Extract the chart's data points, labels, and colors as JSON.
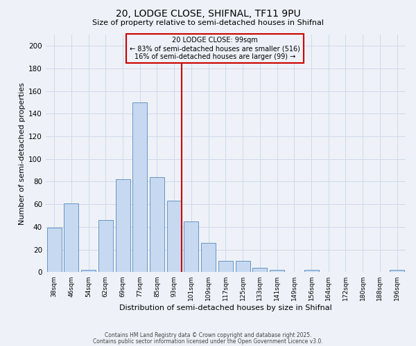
{
  "title1": "20, LODGE CLOSE, SHIFNAL, TF11 9PU",
  "title2": "Size of property relative to semi-detached houses in Shifnal",
  "xlabel": "Distribution of semi-detached houses by size in Shifnal",
  "ylabel": "Number of semi-detached properties",
  "categories": [
    "38sqm",
    "46sqm",
    "54sqm",
    "62sqm",
    "69sqm",
    "77sqm",
    "85sqm",
    "93sqm",
    "101sqm",
    "109sqm",
    "117sqm",
    "125sqm",
    "133sqm",
    "141sqm",
    "149sqm",
    "156sqm",
    "164sqm",
    "172sqm",
    "180sqm",
    "188sqm",
    "196sqm"
  ],
  "values": [
    39,
    61,
    2,
    46,
    82,
    150,
    84,
    63,
    45,
    26,
    10,
    10,
    4,
    2,
    0,
    2,
    0,
    0,
    0,
    0,
    2
  ],
  "bar_color": "#c6d9f0",
  "bar_edge_color": "#5588bb",
  "grid_color": "#d0d8e8",
  "vline_color": "#cc0000",
  "annotation_title": "20 LODGE CLOSE: 99sqm",
  "annotation_line1": "← 83% of semi-detached houses are smaller (516)",
  "annotation_line2": "16% of semi-detached houses are larger (99) →",
  "annotation_box_color": "#cc0000",
  "ylim": [
    0,
    210
  ],
  "yticks": [
    0,
    20,
    40,
    60,
    80,
    100,
    120,
    140,
    160,
    180,
    200
  ],
  "footer1": "Contains HM Land Registry data © Crown copyright and database right 2025.",
  "footer2": "Contains public sector information licensed under the Open Government Licence v3.0.",
  "background_color": "#eef2f8"
}
